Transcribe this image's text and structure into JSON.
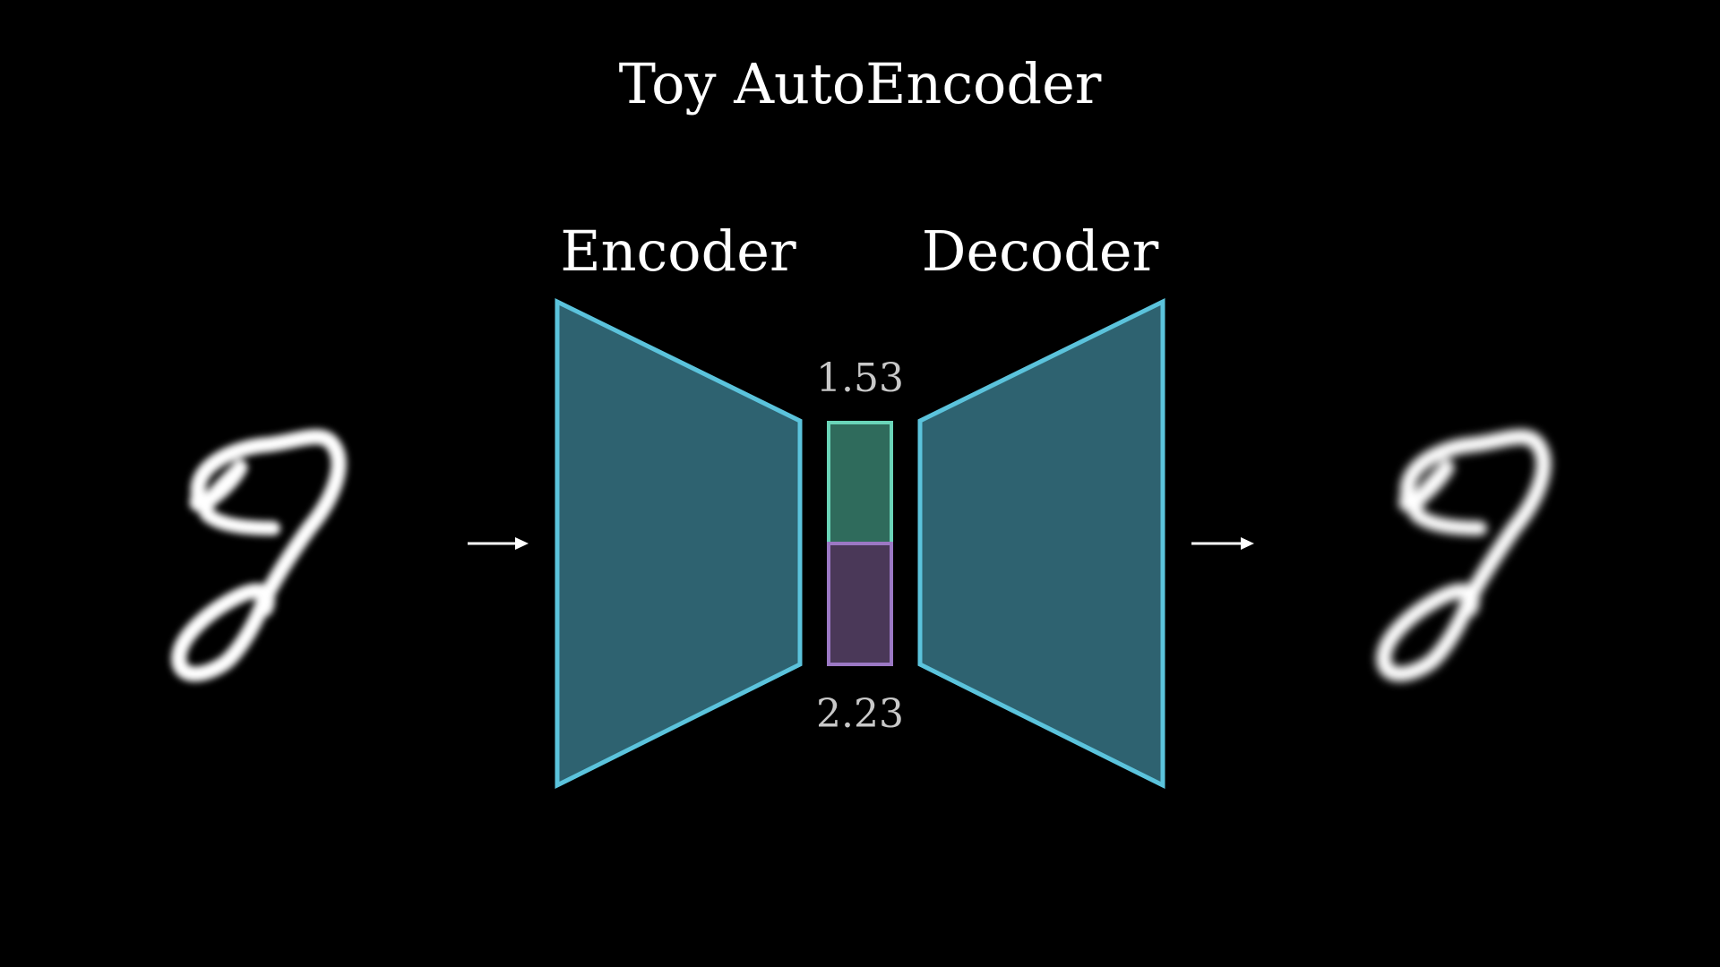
{
  "title": "Toy AutoEncoder",
  "encoder": {
    "label": "Encoder"
  },
  "decoder": {
    "label": "Decoder"
  },
  "latent": {
    "values": [
      "1.53",
      "2.23"
    ]
  },
  "input_image": {
    "digit": "8"
  },
  "output_image": {
    "digit": "8"
  },
  "colors": {
    "background": "#000000",
    "network_fill": "#2e6270",
    "network_stroke": "#5bc3dc",
    "latent_top_fill": "#2f6b5c",
    "latent_top_stroke": "#6ad4b8",
    "latent_bottom_fill": "#4a3858",
    "latent_bottom_stroke": "#9b78c4",
    "text": "#ffffff",
    "value_text": "#c8c8c8"
  },
  "icons": {
    "input_arrow": "arrow-right-icon",
    "output_arrow": "arrow-right-icon"
  }
}
